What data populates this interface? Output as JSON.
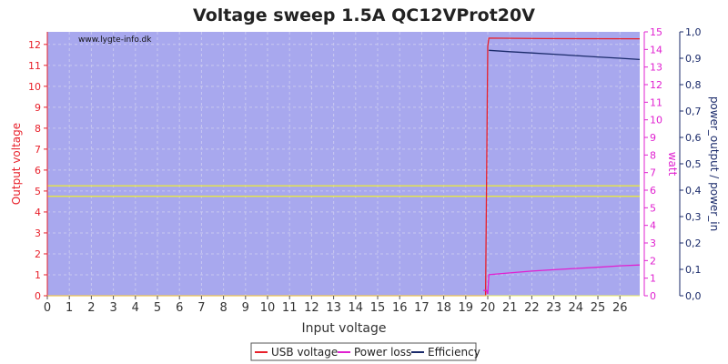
{
  "chart_data": {
    "type": "line",
    "title": "Voltage sweep 1.5A QC12VProt20V",
    "watermark": "www.lygte-info.dk",
    "xlabel": "Input voltage",
    "xlim": [
      0,
      26.9
    ],
    "x_ticks": [
      0,
      1,
      2,
      3,
      4,
      5,
      6,
      7,
      8,
      9,
      10,
      11,
      12,
      13,
      14,
      15,
      16,
      17,
      18,
      19,
      20,
      21,
      22,
      23,
      24,
      25,
      26
    ],
    "y_left": {
      "label": "Output voltage",
      "lim": [
        0,
        12.6
      ],
      "ticks": [
        0,
        1,
        2,
        3,
        4,
        5,
        6,
        7,
        8,
        9,
        10,
        11,
        12
      ],
      "color": "#e8202a"
    },
    "y_right1": {
      "label": "watt",
      "lim": [
        0,
        15
      ],
      "ticks": [
        0,
        1,
        2,
        3,
        4,
        5,
        6,
        7,
        8,
        9,
        10,
        11,
        12,
        13,
        14,
        15
      ],
      "color": "#e020d0"
    },
    "y_right2": {
      "label": "power_output / power_in",
      "lim": [
        0,
        1.0
      ],
      "ticks": [
        "0,0",
        "0,1",
        "0,2",
        "0,3",
        "0,4",
        "0,5",
        "0,6",
        "0,7",
        "0,8",
        "0,9",
        "1,0"
      ],
      "color": "#1a2a6a"
    },
    "grid": true,
    "legend_position": "bottom-center",
    "colors": {
      "plot_bg": "#a8a8ee",
      "grid": "#c8c8f0",
      "reference_lines": "#e8e840"
    },
    "reference_lines": [
      {
        "axis": "y_left",
        "value": 4.75
      },
      {
        "axis": "y_left",
        "value": 5.25
      }
    ],
    "series": [
      {
        "name": "USB voltage",
        "axis": "y_left",
        "color": "#e8202a",
        "x": [
          0,
          19.85,
          19.9,
          20.0,
          20.05,
          22.5,
          26.9
        ],
        "y": [
          0,
          0,
          0,
          11.9,
          12.3,
          12.28,
          12.27
        ]
      },
      {
        "name": "Power loss",
        "axis": "y_right1",
        "color": "#e020d0",
        "x": [
          19.8,
          19.95,
          20.0,
          20.05,
          21.0,
          22.0,
          23.0,
          24.0,
          25.0,
          26.0,
          26.9
        ],
        "y": [
          0.3,
          0.3,
          0.1,
          1.2,
          1.3,
          1.4,
          1.48,
          1.55,
          1.62,
          1.7,
          1.75
        ]
      },
      {
        "name": "Efficiency",
        "axis": "y_right2",
        "color": "#1a2a6a",
        "x": [
          20.05,
          21.0,
          22.0,
          23.0,
          24.0,
          25.0,
          26.0,
          26.9
        ],
        "y": [
          0.93,
          0.925,
          0.92,
          0.915,
          0.91,
          0.905,
          0.9,
          0.895
        ]
      }
    ]
  }
}
